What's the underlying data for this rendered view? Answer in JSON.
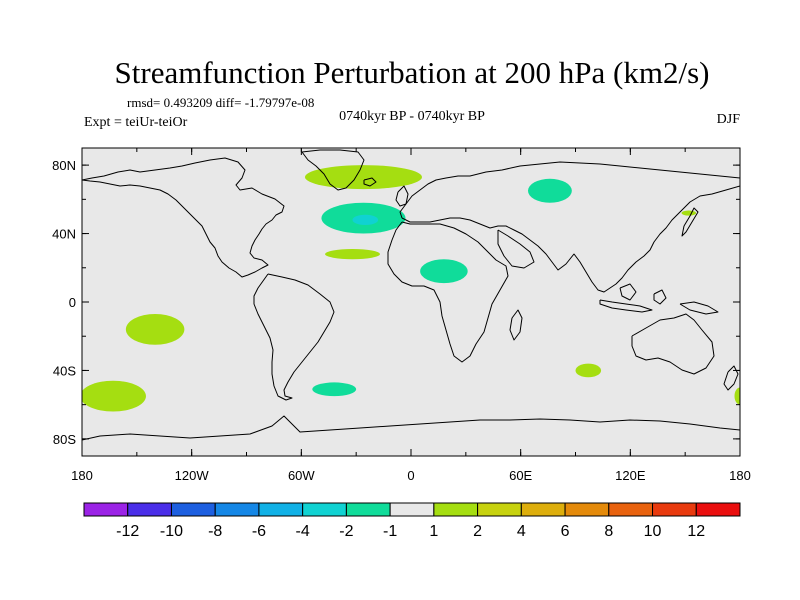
{
  "chart_data": {
    "type": "heatmap",
    "title": "Streamfunction Perturbation at 200 hPa (km2/s)",
    "stats_line": "rmsd= 0.493209 diff= -1.79797e-08",
    "subtitle_center": "0740kyr BP - 0740kyr BP",
    "subtitle_left": "Expt = teiUr-teiOr",
    "subtitle_right": "DJF",
    "projection": "cylindrical equidistant",
    "xlim": [
      -180,
      180
    ],
    "ylim": [
      -90,
      90
    ],
    "x_ticks": [
      {
        "value": -180,
        "label": "180"
      },
      {
        "value": -120,
        "label": "120W"
      },
      {
        "value": -60,
        "label": "60W"
      },
      {
        "value": 0,
        "label": "0"
      },
      {
        "value": 60,
        "label": "60E"
      },
      {
        "value": 120,
        "label": "120E"
      },
      {
        "value": 180,
        "label": "180"
      }
    ],
    "y_ticks": [
      {
        "value": 80,
        "label": "80N"
      },
      {
        "value": 40,
        "label": "40N"
      },
      {
        "value": 0,
        "label": "0"
      },
      {
        "value": -40,
        "label": "40S"
      },
      {
        "value": -80,
        "label": "80S"
      }
    ],
    "background_color": "#e8e8e8",
    "colorbar": {
      "levels": [
        -12,
        -10,
        -8,
        -6,
        -4,
        -2,
        -1,
        1,
        2,
        4,
        6,
        8,
        10,
        12
      ],
      "labels": [
        "-12",
        "-10",
        "-8",
        "-6",
        "-4",
        "-2",
        "-1",
        "1",
        "2",
        "4",
        "6",
        "8",
        "10",
        "12"
      ],
      "colors": [
        "#9b23e6",
        "#4a2ee8",
        "#1d5fe0",
        "#1587e6",
        "#11b1e6",
        "#10d2d2",
        "#10dc9a",
        "#e8e8e8",
        "#a5de11",
        "#c7d20f",
        "#ddae0c",
        "#e48a0a",
        "#e8620e",
        "#e83a0e",
        "#ea0e0e"
      ]
    },
    "anomaly_regions": [
      {
        "name": "north-atlantic-greenland",
        "lon": -26,
        "lat": 73,
        "dlon": 32,
        "dlat": 7,
        "class": "1 to 2",
        "color": "#a5de11"
      },
      {
        "name": "north-atlantic-low",
        "lon": -26,
        "lat": 49,
        "dlon": 23,
        "dlat": 9,
        "class": "-2 to -1",
        "color": "#10dc9a"
      },
      {
        "name": "north-atlantic-core",
        "lon": -25,
        "lat": 48,
        "dlon": 7,
        "dlat": 3,
        "class": "-4 to -2",
        "color": "#10d2d2"
      },
      {
        "name": "subtropical-atlantic",
        "lon": -32,
        "lat": 28,
        "dlon": 15,
        "dlat": 3,
        "class": "1 to 2",
        "color": "#a5de11"
      },
      {
        "name": "north-africa",
        "lon": 18,
        "lat": 18,
        "dlon": 13,
        "dlat": 7,
        "class": "-2 to -1",
        "color": "#10dc9a"
      },
      {
        "name": "west-siberia",
        "lon": 76,
        "lat": 65,
        "dlon": 12,
        "dlat": 7,
        "class": "-2 to -1",
        "color": "#10dc9a"
      },
      {
        "name": "kamchatka",
        "lon": 152,
        "lat": 52,
        "dlon": 4,
        "dlat": 1.5,
        "class": "1 to 2",
        "color": "#a5de11"
      },
      {
        "name": "south-pacific-central",
        "lon": -140,
        "lat": -16,
        "dlon": 16,
        "dlat": 9,
        "class": "1 to 2",
        "color": "#a5de11"
      },
      {
        "name": "south-pacific-dateline",
        "lon": -163,
        "lat": -55,
        "dlon": 18,
        "dlat": 9,
        "class": "1 to 2",
        "color": "#a5de11"
      },
      {
        "name": "south-atlantic",
        "lon": -42,
        "lat": -51,
        "dlon": 12,
        "dlat": 4,
        "class": "-2 to -1",
        "color": "#10dc9a"
      },
      {
        "name": "south-indian-ocean",
        "lon": 97,
        "lat": -40,
        "dlon": 7,
        "dlat": 4,
        "class": "1 to 2",
        "color": "#a5de11"
      },
      {
        "name": "south-pacific-east-edge",
        "lon": 180,
        "lat": -55,
        "dlon": 3,
        "dlat": 5,
        "class": "1 to 2",
        "color": "#a5de11"
      }
    ]
  }
}
